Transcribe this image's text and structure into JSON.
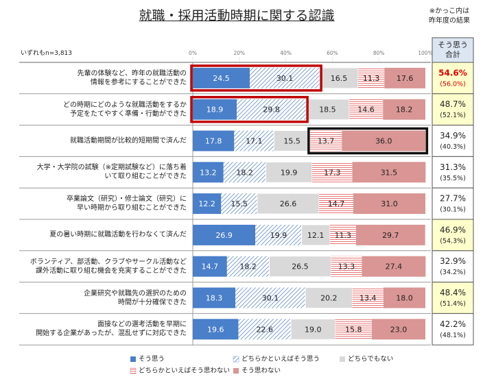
{
  "chart_data": {
    "type": "stacked-bar-horizontal",
    "title": "就職・採用活動時期に関する認識",
    "note": "※かっこ内は\n昨年度の結果",
    "sample_note": "いずれもn=3,813",
    "categories": [
      "先輩の体験など、昨年の就職活動の\n情報を参考にすることができた",
      "どの時期にどのような就職活動をするか\n予定をたてやすく準備・行動ができた",
      "就職活動期間が比較的短期間で済んだ",
      "大学・大学院の試験（※定期試験など）に落ち着\nいて取り組むことができた",
      "卒業論文（研究）・修士論文（研究）に\n早い時期から取り組むことができた",
      "夏の暑い時期に就職活動を行わなくて済んだ",
      "ボランティア、部活動、クラブやサークル活動など\n課外活動に取り組む機会を充実することができた",
      "企業研究や就職先の選択のための\n時間が十分確保できた",
      "面接などの選考活動を早期に\n開始する企業があったが、混乱せずに対応できた"
    ],
    "series": [
      {
        "name": "そう思う",
        "color": "#4a7fc9",
        "values": [
          24.5,
          18.9,
          17.8,
          13.2,
          12.2,
          26.9,
          14.7,
          18.3,
          19.6
        ],
        "value_labels": [
          "24.5",
          "18.9",
          "17.8",
          "13.2",
          "12.2",
          "26.9",
          "14.7",
          "18.3",
          "19.6"
        ]
      },
      {
        "name": "どちらかといえばそう思う",
        "color": "#6f96cf",
        "values": [
          30.1,
          29.8,
          17.1,
          18.2,
          15.5,
          19.9,
          18.2,
          30.1,
          22.6
        ],
        "value_labels": [
          "30.1",
          "29.8",
          "17.1",
          "18.2",
          "15.5",
          "19.9",
          "18.2",
          "30.1",
          "22.6"
        ]
      },
      {
        "name": "どちらでもない",
        "color": "#d9d9d9",
        "values": [
          16.5,
          18.5,
          15.5,
          19.9,
          26.6,
          12.1,
          26.5,
          20.2,
          19.0
        ],
        "value_labels": [
          "16.5",
          "18.5",
          "15.5",
          "19.9",
          "26.6",
          "12.1",
          "26.5",
          "20.2",
          "19.0"
        ]
      },
      {
        "name": "どちらかといえばそう思わない",
        "color": "#e57373",
        "values": [
          11.3,
          14.6,
          13.7,
          17.3,
          14.7,
          11.3,
          13.3,
          13.4,
          15.8
        ],
        "value_labels": [
          "11.3",
          "14.6",
          "13.7",
          "17.3",
          "14.7",
          "11.3",
          "13.3",
          "13.4",
          "15.8"
        ]
      },
      {
        "name": "そう思わない",
        "color": "#d99694",
        "values": [
          17.6,
          18.2,
          36.0,
          31.5,
          31.0,
          29.7,
          27.4,
          18.0,
          23.0
        ],
        "value_labels": [
          "17.6",
          "18.2",
          "36.0",
          "31.5",
          "31.0",
          "29.7",
          "27.4",
          "18.0",
          "23.0"
        ]
      }
    ],
    "total": {
      "header": "そう思う\n合計",
      "values": [
        54.6,
        48.7,
        34.9,
        31.3,
        27.7,
        46.9,
        32.9,
        48.4,
        42.2
      ],
      "value_labels": [
        "54.6%",
        "48.7%",
        "34.9%",
        "31.3%",
        "27.7%",
        "46.9%",
        "32.9%",
        "48.4%",
        "42.2%"
      ],
      "previous_values": [
        56.0,
        52.1,
        40.3,
        35.5,
        30.1,
        54.3,
        34.2,
        51.4,
        48.1
      ],
      "previous_labels": [
        "(56.0%)",
        "(52.1%)",
        "(40.3%)",
        "(35.5%)",
        "(30.1%)",
        "(54.3%)",
        "(34.2%)",
        "(51.4%)",
        "(48.1%)"
      ]
    },
    "xlim": [
      0,
      100
    ],
    "xticks": [
      {
        "value": 0,
        "label": "0%"
      },
      {
        "value": 20,
        "label": "20%"
      },
      {
        "value": 40,
        "label": "40%"
      },
      {
        "value": 60,
        "label": "60%"
      },
      {
        "value": 80,
        "label": "80%"
      },
      {
        "value": 100,
        "label": "100%"
      }
    ]
  }
}
